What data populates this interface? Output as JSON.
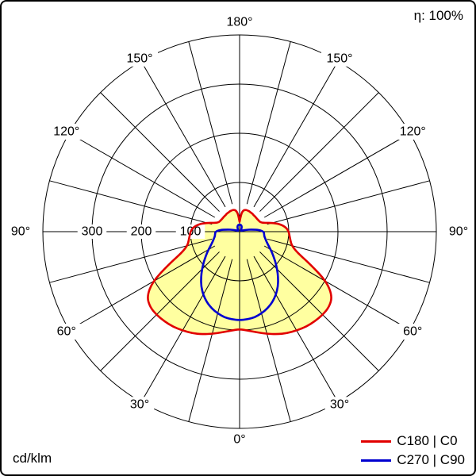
{
  "frame": {
    "efficiency_label": "η: 100%",
    "unit_label": "cd/klm"
  },
  "chart_data": {
    "type": "line",
    "polar": true,
    "description": "Polar luminous intensity distribution curve (photometric diagram)",
    "radial_unit": "cd/klm",
    "efficiency": "η: 100%",
    "angle_unit": "deg",
    "angle_labels": [
      "0°",
      "30°",
      "60°",
      "90°",
      "120°",
      "150°",
      "180°"
    ],
    "angle_label_values": [
      0,
      30,
      60,
      90,
      120,
      150,
      180
    ],
    "radial_ticks": [
      100,
      200,
      300
    ],
    "radial_max": 400,
    "grid": {
      "circle_step": 100,
      "spoke_step_deg": 15,
      "color": "#000000"
    },
    "gamma_angles": [
      0,
      5,
      10,
      15,
      20,
      25,
      30,
      35,
      40,
      45,
      50,
      55,
      60,
      65,
      70,
      75,
      80,
      85,
      90,
      95,
      100,
      105,
      110,
      115,
      120,
      125,
      130,
      135,
      140,
      145,
      150,
      155,
      160,
      165,
      170,
      175,
      180
    ],
    "series": [
      {
        "name": "C180 | C0",
        "color": "#e10000",
        "fill": "#ffffa0",
        "values": [
          198,
          202,
          208,
          215,
          222,
          228,
          232,
          236,
          238,
          239,
          238,
          230,
          205,
          160,
          125,
          110,
          105,
          102,
          100,
          95,
          85,
          70,
          52,
          46,
          45,
          44,
          44,
          44,
          44,
          45,
          45,
          46,
          46,
          46,
          44,
          36,
          20
        ]
      },
      {
        "name": "C270 | C90",
        "color": "#0000d0",
        "fill": null,
        "values": [
          180,
          179,
          177,
          172,
          166,
          158,
          148,
          136,
          122,
          108,
          95,
          83,
          73,
          64,
          58,
          54,
          51,
          50,
          49,
          40,
          25,
          14,
          8,
          5,
          4,
          4,
          4,
          4,
          5,
          6,
          8,
          10,
          12,
          13,
          14,
          14,
          14
        ]
      }
    ],
    "legend_position": "bottom-right"
  }
}
